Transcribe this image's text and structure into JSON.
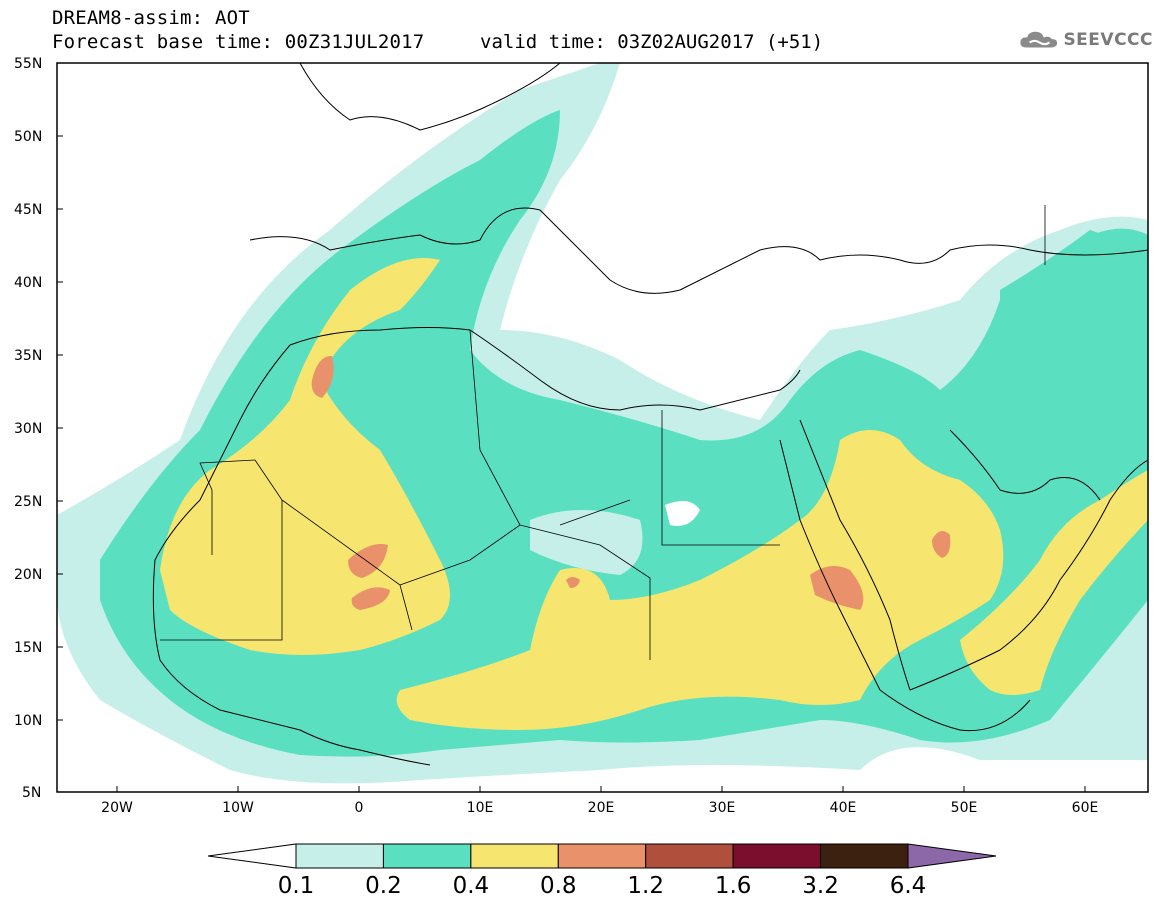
{
  "header": {
    "title": "DREAM8-assim: AOT",
    "base_time": "Forecast base time: 00Z31JUL2017",
    "valid_time": "valid time: 03Z02AUG2017 (+51)",
    "logo_text": "SEEVCCC"
  },
  "map": {
    "region": "North Africa / Mediterranean / Middle East",
    "lon_range": [
      -25,
      65
    ],
    "lat_range": [
      5,
      55
    ],
    "lat_labels": [
      "55N",
      "50N",
      "45N",
      "40N",
      "35N",
      "30N",
      "25N",
      "20N",
      "15N",
      "10N",
      "5N"
    ],
    "lon_labels": [
      "20W",
      "10W",
      "0",
      "10E",
      "20E",
      "30E",
      "40E",
      "50E",
      "60E"
    ]
  },
  "legend": {
    "thresholds": [
      "0.1",
      "0.2",
      "0.4",
      "0.8",
      "1.2",
      "1.6",
      "3.2",
      "6.4"
    ],
    "colors": [
      "#ffffff",
      "#c5efe8",
      "#5ae0c0",
      "#f6e56e",
      "#e8916a",
      "#b0503c",
      "#7a0e2c",
      "#3c2010",
      "#8c68a8"
    ]
  }
}
